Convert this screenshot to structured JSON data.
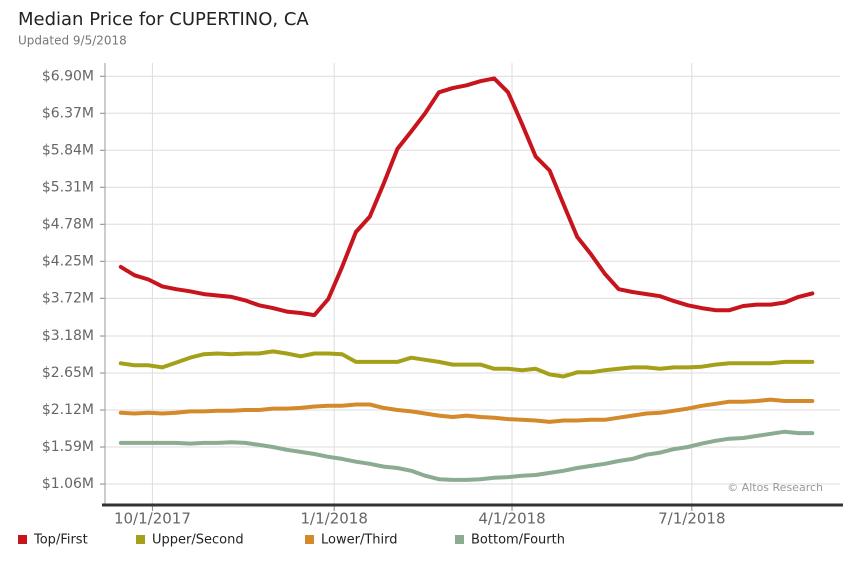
{
  "chart_data": {
    "type": "line",
    "title": "Median Price for CUPERTINO, CA",
    "subtitle": "Updated 9/5/2018",
    "annotation": "© Altos Research",
    "x": [
      "2017-09-15",
      "2017-09-22",
      "2017-09-29",
      "2017-10-06",
      "2017-10-13",
      "2017-10-20",
      "2017-10-27",
      "2017-11-03",
      "2017-11-10",
      "2017-11-17",
      "2017-11-24",
      "2017-12-01",
      "2017-12-08",
      "2017-12-15",
      "2017-12-22",
      "2017-12-29",
      "2018-01-05",
      "2018-01-12",
      "2018-01-19",
      "2018-01-26",
      "2018-02-02",
      "2018-02-09",
      "2018-02-16",
      "2018-02-23",
      "2018-03-02",
      "2018-03-09",
      "2018-03-16",
      "2018-03-23",
      "2018-03-30",
      "2018-04-06",
      "2018-04-13",
      "2018-04-20",
      "2018-04-27",
      "2018-05-04",
      "2018-05-11",
      "2018-05-18",
      "2018-05-25",
      "2018-06-01",
      "2018-06-08",
      "2018-06-15",
      "2018-06-22",
      "2018-06-29",
      "2018-07-06",
      "2018-07-13",
      "2018-07-20",
      "2018-07-27",
      "2018-08-03",
      "2018-08-10",
      "2018-08-17",
      "2018-08-24",
      "2018-08-31"
    ],
    "xlim": [
      "2017-09-07",
      "2018-09-14"
    ],
    "xticks": [
      {
        "value": "2017-10-01",
        "label": "10/1/2017"
      },
      {
        "value": "2018-01-01",
        "label": "1/1/2018"
      },
      {
        "value": "2018-04-01",
        "label": "4/1/2018"
      },
      {
        "value": "2018-07-01",
        "label": "7/1/2018"
      }
    ],
    "ylim": [
      0.76,
      7.09
    ],
    "yticks": [
      {
        "value": 1.06,
        "label": "$1.06M"
      },
      {
        "value": 1.59,
        "label": "$1.59M"
      },
      {
        "value": 2.12,
        "label": "$2.12M"
      },
      {
        "value": 2.65,
        "label": "$2.65M"
      },
      {
        "value": 3.18,
        "label": "$3.18M"
      },
      {
        "value": 3.72,
        "label": "$3.72M"
      },
      {
        "value": 4.25,
        "label": "$4.25M"
      },
      {
        "value": 4.78,
        "label": "$4.78M"
      },
      {
        "value": 5.31,
        "label": "$5.31M"
      },
      {
        "value": 5.84,
        "label": "$5.84M"
      },
      {
        "value": 6.37,
        "label": "$6.37M"
      },
      {
        "value": 6.9,
        "label": "$6.90M"
      }
    ],
    "grid": true,
    "series": [
      {
        "name": "Top/First",
        "color": "#c8141c",
        "values": [
          4.17,
          4.05,
          3.99,
          3.89,
          3.85,
          3.82,
          3.78,
          3.76,
          3.74,
          3.69,
          3.62,
          3.58,
          3.53,
          3.51,
          3.48,
          3.71,
          4.17,
          4.67,
          4.89,
          5.36,
          5.86,
          6.11,
          6.37,
          6.67,
          6.73,
          6.77,
          6.83,
          6.87,
          6.67,
          6.22,
          5.75,
          5.55,
          5.07,
          4.6,
          4.35,
          4.07,
          3.85,
          3.81,
          3.78,
          3.75,
          3.68,
          3.62,
          3.58,
          3.55,
          3.55,
          3.61,
          3.63,
          3.63,
          3.66,
          3.74,
          3.79
        ]
      },
      {
        "name": "Upper/Second",
        "color": "#a5a01a",
        "values": [
          2.79,
          2.76,
          2.76,
          2.73,
          2.8,
          2.87,
          2.92,
          2.93,
          2.92,
          2.93,
          2.93,
          2.96,
          2.93,
          2.89,
          2.93,
          2.93,
          2.92,
          2.81,
          2.81,
          2.81,
          2.81,
          2.87,
          2.84,
          2.81,
          2.77,
          2.77,
          2.77,
          2.71,
          2.71,
          2.69,
          2.71,
          2.63,
          2.6,
          2.66,
          2.66,
          2.69,
          2.71,
          2.73,
          2.73,
          2.71,
          2.73,
          2.73,
          2.74,
          2.77,
          2.79,
          2.79,
          2.79,
          2.79,
          2.81,
          2.81,
          2.81
        ]
      },
      {
        "name": "Lower/Third",
        "color": "#d4892a",
        "values": [
          2.08,
          2.07,
          2.08,
          2.07,
          2.08,
          2.1,
          2.1,
          2.11,
          2.11,
          2.12,
          2.12,
          2.14,
          2.14,
          2.15,
          2.17,
          2.18,
          2.18,
          2.2,
          2.2,
          2.15,
          2.12,
          2.1,
          2.07,
          2.04,
          2.02,
          2.04,
          2.02,
          2.01,
          1.99,
          1.98,
          1.97,
          1.95,
          1.97,
          1.97,
          1.98,
          1.98,
          2.01,
          2.04,
          2.07,
          2.08,
          2.11,
          2.14,
          2.18,
          2.21,
          2.24,
          2.24,
          2.25,
          2.27,
          2.25,
          2.25,
          2.25
        ]
      },
      {
        "name": "Bottom/Fourth",
        "color": "#8cab93",
        "values": [
          1.65,
          1.65,
          1.65,
          1.65,
          1.65,
          1.64,
          1.65,
          1.65,
          1.66,
          1.65,
          1.62,
          1.59,
          1.55,
          1.52,
          1.49,
          1.45,
          1.42,
          1.38,
          1.35,
          1.31,
          1.29,
          1.25,
          1.18,
          1.13,
          1.12,
          1.12,
          1.13,
          1.15,
          1.16,
          1.18,
          1.19,
          1.22,
          1.25,
          1.29,
          1.32,
          1.35,
          1.39,
          1.42,
          1.48,
          1.51,
          1.56,
          1.59,
          1.64,
          1.68,
          1.71,
          1.72,
          1.75,
          1.78,
          1.81,
          1.79,
          1.79
        ]
      }
    ]
  }
}
